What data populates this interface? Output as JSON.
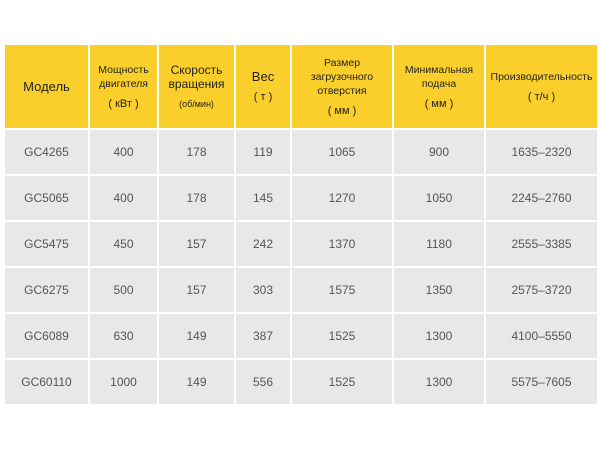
{
  "colors": {
    "header": "#fbcf2b",
    "row": "#e7e8e8"
  },
  "headers": [
    {
      "label": "Модель",
      "unit": ""
    },
    {
      "label": "Мощность двигателя",
      "unit": "( кВт )"
    },
    {
      "label": "Скорость вращения",
      "unit": "(об/мин)"
    },
    {
      "label": "Вес",
      "unit": "( т )"
    },
    {
      "label": "Размер загрузочного отверстия",
      "unit": "( мм )"
    },
    {
      "label": "Минимальная подача",
      "unit": "( мм )"
    },
    {
      "label": "Производительность",
      "unit": "( т/ч )"
    }
  ],
  "rows": [
    [
      "GC4265",
      "400",
      "178",
      "119",
      "1065",
      "900",
      "1635–2320"
    ],
    [
      "GC5065",
      "400",
      "178",
      "145",
      "1270",
      "1050",
      "2245–2760"
    ],
    [
      "GC5475",
      "450",
      "157",
      "242",
      "1370",
      "1180",
      "2555–3385"
    ],
    [
      "GC6275",
      "500",
      "157",
      "303",
      "1575",
      "1350",
      "2575–3720"
    ],
    [
      "GC6089",
      "630",
      "149",
      "387",
      "1525",
      "1300",
      "4100–5550"
    ],
    [
      "GC60110",
      "1000",
      "149",
      "556",
      "1525",
      "1300",
      "5575–7605"
    ]
  ]
}
